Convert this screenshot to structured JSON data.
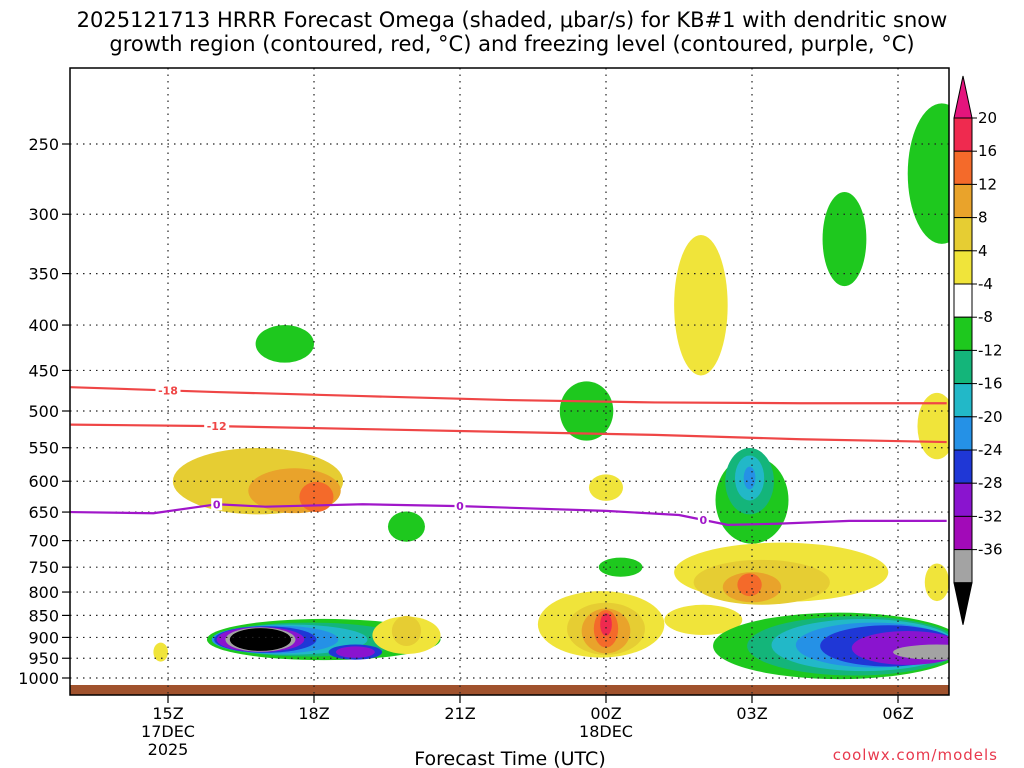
{
  "title_line1": "2025121713 HRRR Forecast Omega (shaded, μbar/s) for KB#1 with dendritic snow",
  "title_line2": "growth region (contoured, red, °C) and freezing level (contoured, purple, °C)",
  "credit": "coolwx.com/models",
  "chart_data": {
    "type": "heatmap",
    "xlabel": "Forecast Time (UTC)",
    "x_ticks": [
      {
        "hour": 15,
        "label": "15Z",
        "sub": [
          "17DEC",
          "2025"
        ]
      },
      {
        "hour": 18,
        "label": "18Z",
        "sub": []
      },
      {
        "hour": 21,
        "label": "21Z",
        "sub": []
      },
      {
        "hour": 24,
        "label": "00Z",
        "sub": [
          "18DEC"
        ]
      },
      {
        "hour": 27,
        "label": "03Z",
        "sub": []
      },
      {
        "hour": 30,
        "label": "06Z",
        "sub": []
      }
    ],
    "xlim": [
      13,
      31
    ],
    "y_ticks": [
      250,
      300,
      350,
      400,
      450,
      500,
      550,
      600,
      650,
      700,
      750,
      800,
      850,
      900,
      950,
      1000
    ],
    "ylim": [
      200,
      1015
    ],
    "y_scale": "log",
    "colorbar": {
      "labels": [
        "20",
        "16",
        "12",
        "8",
        "4",
        "-4",
        "-8",
        "-12",
        "-16",
        "-20",
        "-24",
        "-28",
        "-32",
        "-36"
      ],
      "colors": [
        "#ef2a4f",
        "#f46a2a",
        "#e9a32b",
        "#e6cd33",
        "#f0e43a",
        "#ffffff",
        "#1ec81e",
        "#14b57a",
        "#22b8c8",
        "#2591e6",
        "#1f37d6",
        "#8a14cf",
        "#a20ab8",
        "#a3a3a3",
        "#000000"
      ],
      "top_color": "#e4147d"
    },
    "contours": [
      {
        "name": "dendritic snow growth region",
        "label": "-18",
        "color": "#ef4646",
        "points": [
          [
            13,
            470
          ],
          [
            16,
            476
          ],
          [
            19,
            481
          ],
          [
            22,
            486
          ],
          [
            25,
            489
          ],
          [
            28,
            490
          ],
          [
            31,
            490
          ]
        ],
        "label_at": 15
      },
      {
        "name": "dendritic snow growth region",
        "label": "-12",
        "color": "#ef4646",
        "points": [
          [
            13,
            518
          ],
          [
            16,
            520
          ],
          [
            19,
            524
          ],
          [
            22,
            528
          ],
          [
            25,
            532
          ],
          [
            28,
            538
          ],
          [
            31,
            542
          ]
        ],
        "label_at": 16
      },
      {
        "name": "freezing level",
        "label": "0",
        "color": "#a016c9",
        "points": [
          [
            13,
            650
          ],
          [
            14.7,
            652
          ],
          [
            16,
            637
          ],
          [
            17,
            641
          ],
          [
            19,
            637
          ],
          [
            21,
            640
          ],
          [
            24,
            648
          ],
          [
            25.5,
            655
          ],
          [
            26.5,
            672
          ],
          [
            27.5,
            670
          ],
          [
            29,
            665
          ],
          [
            31,
            665
          ]
        ],
        "label_at_list": [
          16,
          21,
          26
        ]
      }
    ],
    "shaded_regions": [
      {
        "value": 8,
        "color": "#e6cd33",
        "t": 16.85,
        "p": 600,
        "rt": 1.75,
        "rp": 0.09
      },
      {
        "value": 12,
        "color": "#e9a32b",
        "t": 17.6,
        "p": 615,
        "rt": 0.95,
        "rp": 0.06
      },
      {
        "value": 16,
        "color": "#f46a2a",
        "t": 18.05,
        "p": 625,
        "rt": 0.35,
        "rp": 0.04
      },
      {
        "value": -8,
        "color": "#1ec81e",
        "t": 17.4,
        "p": 420,
        "rt": 0.6,
        "rp": 0.05
      },
      {
        "value": -8,
        "color": "#1ec81e",
        "t": 19.9,
        "p": 675,
        "rt": 0.38,
        "rp": 0.04
      },
      {
        "value": -8,
        "color": "#1ec81e",
        "t": 18.2,
        "p": 905,
        "rt": 2.4,
        "rp": 0.055
      },
      {
        "value": -12,
        "color": "#14b57a",
        "t": 17.9,
        "p": 905,
        "rt": 2.0,
        "rp": 0.045
      },
      {
        "value": -16,
        "color": "#22b8c8",
        "t": 17.5,
        "p": 905,
        "rt": 1.6,
        "rp": 0.04
      },
      {
        "value": -20,
        "color": "#2591e6",
        "t": 17.2,
        "p": 905,
        "rt": 1.3,
        "rp": 0.037
      },
      {
        "value": -24,
        "color": "#1f37d6",
        "t": 17.0,
        "p": 905,
        "rt": 1.05,
        "rp": 0.035
      },
      {
        "value": -28,
        "color": "#8a14cf",
        "t": 16.9,
        "p": 905,
        "rt": 0.9,
        "rp": 0.033
      },
      {
        "value": -32,
        "color": "#a3a3a3",
        "t": 16.9,
        "p": 905,
        "rt": 0.72,
        "rp": 0.032
      },
      {
        "value": -36,
        "color": "#000000",
        "t": 16.9,
        "p": 905,
        "rt": 0.63,
        "rp": 0.03
      },
      {
        "value": -24,
        "color": "#1f37d6",
        "t": 18.85,
        "p": 935,
        "rt": 0.55,
        "rp": 0.02
      },
      {
        "value": -28,
        "color": "#8a14cf",
        "t": 18.85,
        "p": 935,
        "rt": 0.4,
        "rp": 0.015
      },
      {
        "value": 4,
        "color": "#f0e43a",
        "t": 19.9,
        "p": 895,
        "rt": 0.7,
        "rp": 0.05
      },
      {
        "value": 8,
        "color": "#e6cd33",
        "t": 19.9,
        "p": 885,
        "rt": 0.3,
        "rp": 0.04
      },
      {
        "value": 4,
        "color": "#f0e43a",
        "t": 14.85,
        "p": 935,
        "rt": 0.15,
        "rp": 0.025
      },
      {
        "value": 4,
        "color": "#f0e43a",
        "t": 23.9,
        "p": 870,
        "rt": 1.3,
        "rp": 0.09
      },
      {
        "value": 8,
        "color": "#e6cd33",
        "t": 24.0,
        "p": 880,
        "rt": 0.8,
        "rp": 0.07
      },
      {
        "value": 12,
        "color": "#e9a32b",
        "t": 24.0,
        "p": 885,
        "rt": 0.5,
        "rp": 0.06
      },
      {
        "value": 16,
        "color": "#f46a2a",
        "t": 24.0,
        "p": 880,
        "rt": 0.25,
        "rp": 0.05
      },
      {
        "value": 20,
        "color": "#ef2a4f",
        "t": 24.0,
        "p": 870,
        "rt": 0.12,
        "rp": 0.03
      },
      {
        "value": -8,
        "color": "#1ec81e",
        "t": 24.3,
        "p": 750,
        "rt": 0.45,
        "rp": 0.025
      },
      {
        "value": 4,
        "color": "#f0e43a",
        "t": 24.0,
        "p": 610,
        "rt": 0.35,
        "rp": 0.035
      },
      {
        "value": -8,
        "color": "#1ec81e",
        "t": 23.6,
        "p": 500,
        "rt": 0.55,
        "rp": 0.08
      },
      {
        "value": 4,
        "color": "#f0e43a",
        "t": 25.95,
        "p": 380,
        "rt": 0.55,
        "rp": 0.2
      },
      {
        "value": -8,
        "color": "#1ec81e",
        "t": 27.0,
        "p": 630,
        "rt": 0.75,
        "rp": 0.12
      },
      {
        "value": -12,
        "color": "#14b57a",
        "t": 26.95,
        "p": 600,
        "rt": 0.5,
        "rp": 0.09
      },
      {
        "value": -16,
        "color": "#22b8c8",
        "t": 26.95,
        "p": 595,
        "rt": 0.3,
        "rp": 0.06
      },
      {
        "value": -20,
        "color": "#2591e6",
        "t": 26.95,
        "p": 595,
        "rt": 0.12,
        "rp": 0.03
      },
      {
        "value": 4,
        "color": "#f0e43a",
        "t": 27.6,
        "p": 760,
        "rt": 2.2,
        "rp": 0.08
      },
      {
        "value": 8,
        "color": "#e6cd33",
        "t": 27.2,
        "p": 780,
        "rt": 1.4,
        "rp": 0.06
      },
      {
        "value": 12,
        "color": "#e9a32b",
        "t": 27.0,
        "p": 790,
        "rt": 0.6,
        "rp": 0.04
      },
      {
        "value": 16,
        "color": "#f46a2a",
        "t": 26.95,
        "p": 785,
        "rt": 0.25,
        "rp": 0.03
      },
      {
        "value": 4,
        "color": "#f0e43a",
        "t": 26.0,
        "p": 860,
        "rt": 0.8,
        "rp": 0.04
      },
      {
        "value": -8,
        "color": "#1ec81e",
        "t": 28.8,
        "p": 920,
        "rt": 2.6,
        "rp": 0.09
      },
      {
        "value": -12,
        "color": "#14b57a",
        "t": 29.1,
        "p": 920,
        "rt": 2.2,
        "rp": 0.08
      },
      {
        "value": -16,
        "color": "#22b8c8",
        "t": 29.3,
        "p": 918,
        "rt": 1.9,
        "rp": 0.07
      },
      {
        "value": -20,
        "color": "#2591e6",
        "t": 29.5,
        "p": 918,
        "rt": 1.6,
        "rp": 0.06
      },
      {
        "value": -24,
        "color": "#1f37d6",
        "t": 29.8,
        "p": 920,
        "rt": 1.4,
        "rp": 0.055
      },
      {
        "value": -28,
        "color": "#8a14cf",
        "t": 30.2,
        "p": 925,
        "rt": 1.15,
        "rp": 0.045
      },
      {
        "value": -32,
        "color": "#a3a3a3",
        "t": 30.8,
        "p": 935,
        "rt": 0.9,
        "rp": 0.02
      },
      {
        "value": -8,
        "color": "#1ec81e",
        "t": 28.9,
        "p": 320,
        "rt": 0.45,
        "rp": 0.13
      },
      {
        "value": -8,
        "color": "#1ec81e",
        "t": 30.9,
        "p": 270,
        "rt": 0.7,
        "rp": 0.2
      },
      {
        "value": 4,
        "color": "#f0e43a",
        "t": 30.8,
        "p": 520,
        "rt": 0.4,
        "rp": 0.09
      },
      {
        "value": 4,
        "color": "#f0e43a",
        "t": 30.8,
        "p": 780,
        "rt": 0.25,
        "rp": 0.05
      }
    ]
  }
}
